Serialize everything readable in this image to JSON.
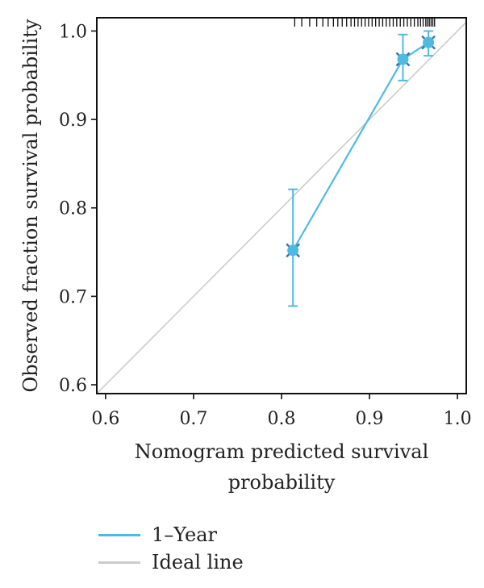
{
  "chart_data": {
    "type": "line",
    "title": "",
    "xlabel": "Nomogram predicted survival probability",
    "xlabel_lines": [
      "Nomogram predicted survival",
      "probability"
    ],
    "ylabel": "Observed fraction survival probability",
    "xlim": [
      0.59,
      1.01
    ],
    "ylim": [
      0.59,
      1.015
    ],
    "xticks": [
      0.6,
      0.7,
      0.8,
      0.9,
      1.0
    ],
    "xtick_labels": [
      "0.6",
      "0.7",
      "0.8",
      "0.9",
      "1.0"
    ],
    "yticks": [
      0.6,
      0.7,
      0.8,
      0.9,
      1.0
    ],
    "ytick_labels": [
      "0.6",
      "0.7",
      "0.8",
      "0.9",
      "1.0"
    ],
    "grid": false,
    "legend_position": "bottom-left",
    "series": [
      {
        "name": "1–Year",
        "color": "#4dbbe1",
        "x": [
          0.813,
          0.938,
          0.967
        ],
        "y": [
          0.752,
          0.968,
          0.987
        ],
        "y_lower": [
          0.689,
          0.944,
          0.972
        ],
        "y_upper": [
          0.821,
          0.996,
          1.0
        ],
        "marker_color": "#3f6fb0"
      },
      {
        "name": "Ideal line",
        "color": "#cccccc",
        "x": [
          0.59,
          1.01
        ],
        "y": [
          0.59,
          1.01
        ]
      }
    ],
    "rug_x": [
      0.815,
      0.823,
      0.832,
      0.84,
      0.847,
      0.853,
      0.859,
      0.864,
      0.869,
      0.874,
      0.879,
      0.883,
      0.887,
      0.891,
      0.895,
      0.899,
      0.903,
      0.907,
      0.911,
      0.915,
      0.919,
      0.923,
      0.927,
      0.931,
      0.935,
      0.939,
      0.943,
      0.947,
      0.951,
      0.955,
      0.958,
      0.961,
      0.964,
      0.966,
      0.968,
      0.97,
      0.972,
      0.974
    ]
  }
}
